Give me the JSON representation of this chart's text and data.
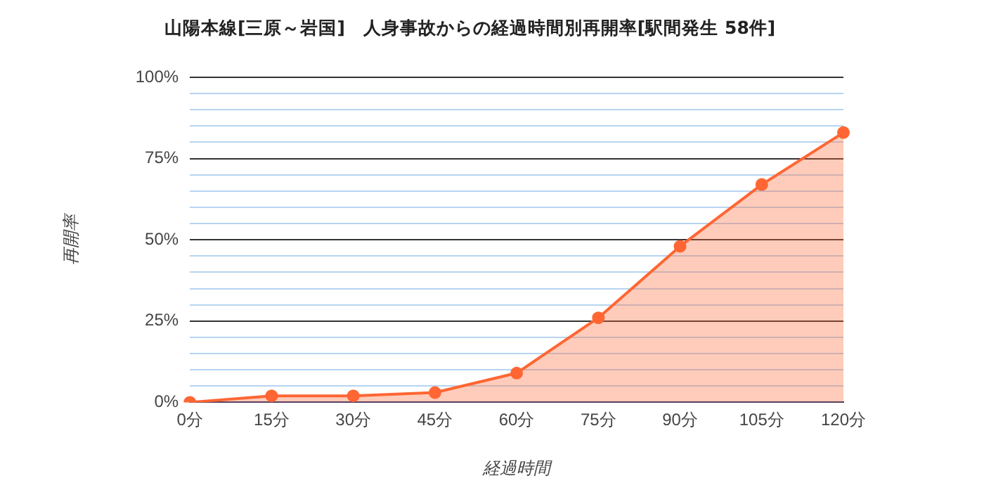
{
  "chart_data": {
    "type": "area",
    "title": "山陽本線[三原～岩国]　人身事故からの経過時間別再開率[駅間発生 58件]",
    "xlabel": "経過時間",
    "ylabel": "再開率",
    "categories": [
      "0分",
      "15分",
      "30分",
      "45分",
      "60分",
      "75分",
      "90分",
      "105分",
      "120分"
    ],
    "series": [
      {
        "color": "#ff6633",
        "values": [
          0,
          2,
          2,
          3,
          9,
          26,
          48,
          67,
          83
        ]
      }
    ],
    "ylim": [
      0,
      100
    ],
    "yticks": [
      {
        "value": 0,
        "label": "0%"
      },
      {
        "value": 5,
        "label": null
      },
      {
        "value": 10,
        "label": null
      },
      {
        "value": 15,
        "label": null
      },
      {
        "value": 20,
        "label": null
      },
      {
        "value": 25,
        "label": "25%"
      },
      {
        "value": 30,
        "label": null
      },
      {
        "value": 35,
        "label": null
      },
      {
        "value": 40,
        "label": null
      },
      {
        "value": 45,
        "label": null
      },
      {
        "value": 50,
        "label": "50%"
      },
      {
        "value": 55,
        "label": null
      },
      {
        "value": 60,
        "label": null
      },
      {
        "value": 65,
        "label": null
      },
      {
        "value": 70,
        "label": null
      },
      {
        "value": 75,
        "label": "75%"
      },
      {
        "value": 80,
        "label": null
      },
      {
        "value": 85,
        "label": null
      },
      {
        "value": 90,
        "label": null
      },
      {
        "value": 95,
        "label": null
      },
      {
        "value": 100,
        "label": "100%"
      }
    ],
    "grid": "y",
    "legend": false,
    "marker": "circle",
    "line_style": "solid"
  }
}
